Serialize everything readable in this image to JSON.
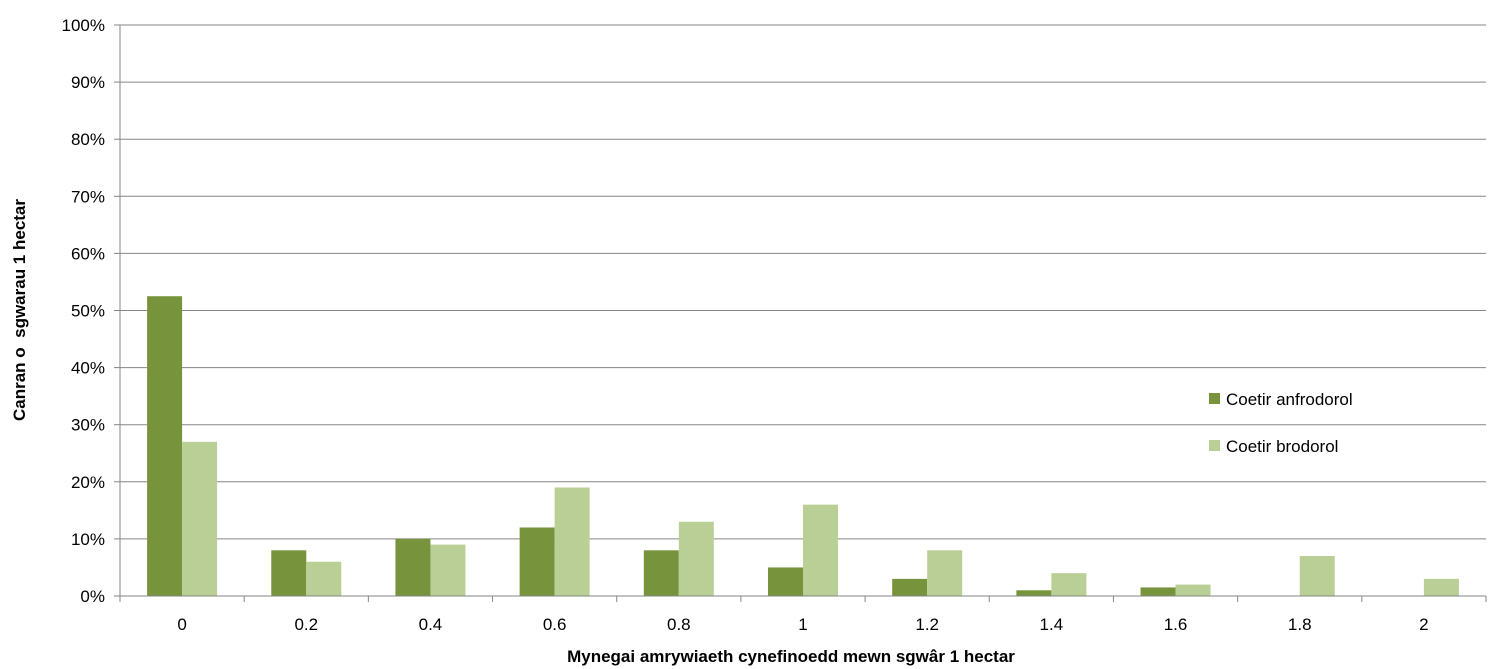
{
  "chart_data": {
    "type": "bar",
    "title": "",
    "xlabel": "Mynegai amrywiaeth cynefinoedd mewn sgwâr 1 hectar",
    "ylabel": "Canran o  sgwarau 1 hectar",
    "categories": [
      "0",
      "0.2",
      "0.4",
      "0.6",
      "0.8",
      "1",
      "1.2",
      "1.4",
      "1.6",
      "1.8",
      "2"
    ],
    "ylim": [
      0,
      100
    ],
    "yticks": [
      "0%",
      "10%",
      "20%",
      "30%",
      "40%",
      "50%",
      "60%",
      "70%",
      "80%",
      "90%",
      "100%"
    ],
    "grid": true,
    "legend_position": "right",
    "series": [
      {
        "name": "Coetir anfrodorol",
        "color": "#77933c",
        "values": [
          52.5,
          8,
          10,
          12,
          8,
          5,
          3,
          1,
          1.5,
          0,
          0
        ]
      },
      {
        "name": "Coetir brodorol",
        "color": "#b9cf96",
        "values": [
          27,
          6,
          9,
          19,
          13,
          16,
          8,
          4,
          2,
          7,
          3
        ]
      }
    ]
  }
}
